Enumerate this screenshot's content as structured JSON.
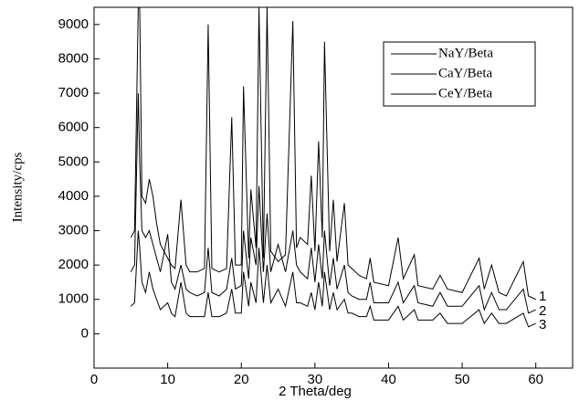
{
  "chart_data": {
    "type": "line",
    "x_label": "2 Theta/deg",
    "y_label": "Intensity/cps",
    "xlim": [
      0,
      65
    ],
    "xticks": [
      0,
      10,
      20,
      30,
      40,
      50,
      60
    ],
    "ylim": [
      -1000,
      9500
    ],
    "yticks": [
      0,
      1000,
      2000,
      3000,
      4000,
      5000,
      6000,
      7000,
      8000,
      9000
    ],
    "legend": "upper right",
    "annotations": [
      "1",
      "2",
      "3"
    ],
    "x": [
      5,
      5.5,
      6,
      6.2,
      6.5,
      7,
      7.5,
      8,
      8.5,
      9,
      10,
      10.5,
      11,
      11.8,
      12.5,
      13,
      14,
      15,
      15.5,
      16,
      17,
      18,
      18.7,
      19.2,
      20,
      20.3,
      21,
      21.3,
      22,
      22.4,
      23,
      23.5,
      24,
      25,
      26,
      27,
      27.5,
      28,
      29,
      29.5,
      30,
      30.5,
      31,
      31.3,
      32,
      32.5,
      33,
      34,
      34.5,
      35,
      36,
      37,
      37.5,
      38,
      40,
      41.3,
      42,
      43.5,
      44,
      46,
      47,
      48,
      50,
      52.3,
      53,
      54,
      55,
      56,
      58.3,
      59,
      60
    ],
    "series": [
      {
        "name": "NaY/Beta",
        "color": "#000000",
        "values": [
          2800,
          3000,
          9500,
          9500,
          4000,
          3800,
          4500,
          4000,
          3200,
          2600,
          2200,
          2000,
          1900,
          3900,
          2000,
          1800,
          1800,
          1900,
          9000,
          1900,
          1800,
          1900,
          6300,
          2000,
          2000,
          7200,
          2200,
          4200,
          2500,
          9500,
          2200,
          9500,
          2400,
          2100,
          2300,
          9100,
          2500,
          2800,
          2600,
          4600,
          2400,
          5600,
          2800,
          8500,
          2400,
          3900,
          2100,
          3800,
          2000,
          1900,
          1700,
          1600,
          2200,
          1500,
          1400,
          2800,
          1600,
          2300,
          1400,
          1300,
          1700,
          1300,
          1200,
          2200,
          1300,
          2000,
          1200,
          1100,
          2100,
          1100,
          1000
        ]
      },
      {
        "name": "CaY/Beta",
        "color": "#000000",
        "values": [
          1800,
          2000,
          7000,
          5000,
          3000,
          2800,
          3000,
          2600,
          2200,
          1800,
          2900,
          1500,
          1300,
          2000,
          1300,
          1200,
          1100,
          1200,
          2500,
          1200,
          1100,
          1300,
          2200,
          1300,
          1400,
          3000,
          1600,
          2800,
          2000,
          4300,
          1800,
          3500,
          1800,
          2600,
          1800,
          3000,
          2000,
          1800,
          1600,
          2500,
          1500,
          2600,
          1600,
          3000,
          1400,
          2200,
          1300,
          2000,
          1200,
          1100,
          1000,
          1000,
          1500,
          900,
          900,
          1500,
          900,
          1400,
          900,
          800,
          1200,
          800,
          800,
          1400,
          700,
          1200,
          700,
          700,
          1300,
          600,
          700
        ]
      },
      {
        "name": "CeY/Beta",
        "color": "#000000",
        "values": [
          800,
          900,
          3000,
          2500,
          1500,
          1200,
          1800,
          1300,
          1000,
          700,
          900,
          600,
          500,
          1500,
          600,
          500,
          500,
          500,
          1200,
          500,
          500,
          600,
          1300,
          600,
          600,
          1800,
          800,
          1500,
          900,
          2500,
          900,
          2000,
          900,
          1300,
          800,
          1800,
          900,
          900,
          800,
          1200,
          700,
          1500,
          800,
          1800,
          700,
          1200,
          700,
          1000,
          600,
          600,
          500,
          500,
          800,
          400,
          400,
          800,
          400,
          700,
          400,
          400,
          600,
          300,
          300,
          700,
          300,
          600,
          300,
          300,
          600,
          200,
          300
        ]
      }
    ]
  }
}
